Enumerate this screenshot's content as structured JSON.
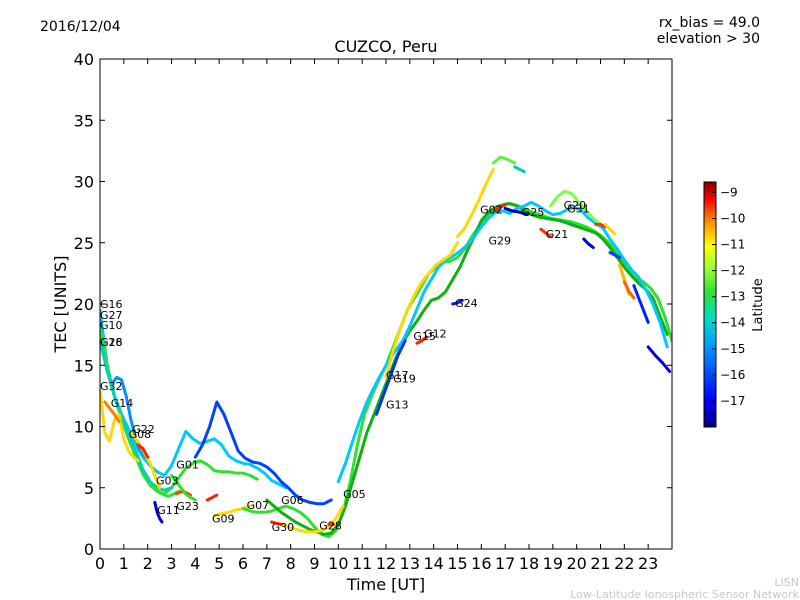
{
  "header": {
    "date": "2016/12/04",
    "rx_bias": "rx_bias = 49.0",
    "elevation": "elevation > 30"
  },
  "footer": {
    "line1": "LISN",
    "line2": "Low-Latitude Ionospheric Sensor Network"
  },
  "chart_data": {
    "type": "scatter",
    "title": "CUZCO, Peru",
    "xlabel": "Time [UT]",
    "ylabel": "TEC [UNITS]",
    "xlim": [
      0,
      24
    ],
    "ylim": [
      0,
      40
    ],
    "xticks": [
      "0",
      "1",
      "2",
      "3",
      "4",
      "5",
      "6",
      "7",
      "8",
      "9",
      "10",
      "11",
      "12",
      "13",
      "14",
      "15",
      "16",
      "17",
      "18",
      "19",
      "20",
      "21",
      "22",
      "23"
    ],
    "yticks": [
      "0",
      "5",
      "10",
      "15",
      "20",
      "25",
      "30",
      "35",
      "40"
    ],
    "grid": false,
    "colorbar": {
      "label": "Latitude",
      "range": [
        -18,
        -8.6
      ],
      "ticks": [
        "−9",
        "−10",
        "−11",
        "−12",
        "−13",
        "−14",
        "−15",
        "−16",
        "−17"
      ],
      "colormap": [
        "#00007f",
        "#0000ff",
        "#007fff",
        "#00ffff",
        "#7fff7f",
        "#ffff00",
        "#ff7f00",
        "#ff0000",
        "#7f0000"
      ]
    },
    "prn_labels": [
      {
        "text": "G16",
        "x": 0.0,
        "y": 20.0
      },
      {
        "text": "G27",
        "x": 0.0,
        "y": 19.1
      },
      {
        "text": "G10",
        "x": 0.0,
        "y": 18.3
      },
      {
        "text": "G18",
        "x": 0.0,
        "y": 16.9
      },
      {
        "text": "G26",
        "x": 0.0,
        "y": 16.9
      },
      {
        "text": "G32",
        "x": 0.0,
        "y": 13.3
      },
      {
        "text": "G14",
        "x": 0.45,
        "y": 11.9
      },
      {
        "text": "G22",
        "x": 1.35,
        "y": 9.8
      },
      {
        "text": "G08",
        "x": 1.2,
        "y": 9.4
      },
      {
        "text": "G01",
        "x": 3.2,
        "y": 6.9
      },
      {
        "text": "G03",
        "x": 2.35,
        "y": 5.6
      },
      {
        "text": "G23",
        "x": 3.2,
        "y": 3.5
      },
      {
        "text": "G11",
        "x": 2.4,
        "y": 3.2
      },
      {
        "text": "G09",
        "x": 4.7,
        "y": 2.5
      },
      {
        "text": "G07",
        "x": 6.15,
        "y": 3.6
      },
      {
        "text": "G06",
        "x": 7.6,
        "y": 4.0
      },
      {
        "text": "G30",
        "x": 7.2,
        "y": 1.8
      },
      {
        "text": "G28",
        "x": 9.2,
        "y": 1.9
      },
      {
        "text": "G05",
        "x": 10.2,
        "y": 4.5
      },
      {
        "text": "G17",
        "x": 12.0,
        "y": 14.2
      },
      {
        "text": "G19",
        "x": 12.3,
        "y": 13.9
      },
      {
        "text": "G13",
        "x": 12.0,
        "y": 11.8
      },
      {
        "text": "G15",
        "x": 13.15,
        "y": 17.4
      },
      {
        "text": "G12",
        "x": 13.6,
        "y": 17.6
      },
      {
        "text": "G24",
        "x": 14.9,
        "y": 20.1
      },
      {
        "text": "G02",
        "x": 15.95,
        "y": 27.7
      },
      {
        "text": "G29",
        "x": 16.3,
        "y": 25.2
      },
      {
        "text": "G25",
        "x": 17.7,
        "y": 27.5
      },
      {
        "text": "G21",
        "x": 18.7,
        "y": 25.7
      },
      {
        "text": "G20",
        "x": 19.45,
        "y": 28.1
      },
      {
        "text": "G31",
        "x": 19.6,
        "y": 27.8
      }
    ],
    "series": [
      {
        "color": "#00c8ff",
        "x": [
          0.0,
          0.3,
          0.6,
          0.9,
          1.2,
          1.5,
          1.8,
          2.1,
          2.4,
          2.7,
          3.0,
          3.3,
          3.6,
          3.9,
          4.2,
          4.5,
          4.8,
          5.1,
          5.4,
          5.7,
          6.0,
          6.3,
          6.6,
          6.9,
          7.2,
          7.5,
          7.8
        ],
        "y": [
          19.5,
          15.0,
          12.5,
          11.0,
          9.8,
          8.5,
          7.5,
          6.8,
          6.3,
          6.0,
          6.8,
          8.2,
          9.6,
          9.0,
          8.6,
          8.8,
          9.0,
          8.5,
          7.6,
          7.2,
          7.0,
          6.9,
          6.6,
          6.2,
          5.6,
          5.3,
          5.0
        ]
      },
      {
        "color": "#0040ff",
        "x": [
          4.0,
          4.3,
          4.6,
          4.9,
          5.2,
          5.5,
          5.8,
          6.1,
          6.4,
          6.7,
          7.0,
          7.3,
          7.6,
          7.9,
          8.2,
          8.5,
          8.8,
          9.1,
          9.4,
          9.7
        ],
        "y": [
          7.5,
          8.5,
          10.0,
          12.0,
          11.0,
          9.5,
          8.0,
          7.4,
          7.1,
          7.0,
          6.7,
          6.2,
          5.5,
          5.0,
          4.4,
          4.0,
          3.8,
          3.7,
          3.7,
          4.0
        ]
      },
      {
        "color": "#0090ff",
        "x": [
          0.5,
          0.7,
          0.9,
          1.1,
          1.3,
          1.5,
          1.7,
          1.9
        ],
        "y": [
          13.5,
          14.0,
          13.8,
          12.5,
          10.5,
          9.0,
          8.0,
          7.5
        ]
      },
      {
        "color": "#30e030",
        "x": [
          0.0,
          0.3,
          0.6,
          0.9,
          1.2,
          1.5,
          1.8,
          2.1,
          2.4,
          2.7,
          3.0,
          3.3,
          3.6,
          3.9,
          4.2,
          4.5,
          4.8,
          5.1,
          5.4,
          5.7,
          6.0,
          6.3,
          6.6
        ],
        "y": [
          18.0,
          15.0,
          12.5,
          10.6,
          9.0,
          7.5,
          6.1,
          5.2,
          4.7,
          4.5,
          5.0,
          5.8,
          6.6,
          7.0,
          7.2,
          6.9,
          6.4,
          6.3,
          6.3,
          6.2,
          6.2,
          6.0,
          5.7
        ]
      },
      {
        "color": "#00d0c0",
        "x": [
          0.0,
          0.3,
          0.6,
          0.9,
          1.2,
          1.5,
          1.8,
          2.1,
          2.4,
          2.7,
          3.0
        ],
        "y": [
          17.0,
          14.5,
          12.5,
          11.0,
          9.2,
          8.0,
          6.5,
          5.5,
          5.0,
          4.8,
          5.0
        ]
      },
      {
        "color": "#ffd800",
        "x": [
          0.0,
          0.2,
          0.4,
          0.6,
          0.8,
          1.0,
          1.2,
          1.4,
          1.6
        ],
        "y": [
          13.0,
          9.5,
          8.8,
          10.5,
          11.0,
          9.0,
          8.0,
          7.5,
          7.2
        ]
      },
      {
        "color": "#ff8000",
        "x": [
          0.2,
          0.4,
          0.6,
          0.8
        ],
        "y": [
          12.0,
          11.5,
          11.0,
          10.4
        ]
      },
      {
        "color": "#ffd800",
        "x": [
          1.3,
          1.5,
          1.7,
          1.9,
          2.1,
          2.3,
          2.5
        ],
        "y": [
          9.5,
          9.0,
          8.4,
          7.7,
          7.0,
          6.0,
          5.0
        ]
      },
      {
        "color": "#ff2000",
        "x": [
          1.6,
          1.8,
          2.0
        ],
        "y": [
          8.5,
          8.2,
          7.5
        ]
      },
      {
        "color": "#30e030",
        "x": [
          2.3,
          2.5,
          2.7,
          2.9,
          3.1,
          3.3
        ],
        "y": [
          5.0,
          4.6,
          4.4,
          4.3,
          4.5,
          4.7
        ]
      },
      {
        "color": "#0000d0",
        "x": [
          2.3,
          2.4,
          2.5,
          2.6
        ],
        "y": [
          3.8,
          3.0,
          2.5,
          2.2
        ]
      },
      {
        "color": "#ff4000",
        "x": [
          3.2,
          3.4,
          3.6,
          3.8
        ],
        "y": [
          4.5,
          4.7,
          4.6,
          4.4
        ]
      },
      {
        "color": "#30e030",
        "x": [
          3.0,
          3.2,
          3.4,
          3.6,
          3.8,
          4.0
        ],
        "y": [
          6.0,
          5.5,
          5.0,
          4.5,
          4.2,
          4.0
        ]
      },
      {
        "color": "#ff2000",
        "x": [
          4.5,
          4.7,
          4.9
        ],
        "y": [
          4.0,
          4.2,
          4.4
        ]
      },
      {
        "color": "#ffd800",
        "x": [
          4.8,
          5.1,
          5.4,
          5.7,
          6.0,
          6.3
        ],
        "y": [
          2.7,
          2.9,
          3.0,
          3.2,
          3.3,
          3.5
        ]
      },
      {
        "color": "#30e030",
        "x": [
          6.0,
          6.3,
          6.6,
          6.9,
          7.2,
          7.5,
          7.8,
          8.1,
          8.4,
          8.7,
          9.0,
          9.3,
          9.6,
          9.9,
          10.2,
          10.5,
          10.8,
          11.1,
          11.4,
          11.7,
          12.0,
          12.3,
          12.6,
          12.9,
          13.2,
          13.5,
          13.8,
          14.1,
          14.4,
          14.7,
          15.0,
          15.3,
          15.6,
          15.9,
          16.2,
          16.5,
          16.8,
          17.1,
          17.4,
          17.7,
          18.0,
          18.3,
          18.6,
          18.9,
          19.2,
          19.5,
          19.8,
          20.1,
          20.4,
          20.7,
          21.0,
          21.3,
          21.6,
          21.9,
          22.2,
          22.5,
          22.8,
          23.1,
          23.4,
          23.7,
          24.0
        ],
        "y": [
          3.3,
          3.1,
          3.0,
          3.0,
          3.1,
          3.3,
          3.5,
          3.3,
          3.0,
          2.5,
          1.8,
          1.2,
          1.0,
          1.5,
          3.0,
          5.5,
          8.5,
          11.0,
          12.5,
          13.8,
          15.0,
          16.5,
          18.0,
          19.5,
          20.5,
          21.5,
          22.5,
          23.0,
          23.4,
          23.5,
          23.8,
          24.5,
          25.5,
          26.3,
          27.0,
          27.6,
          28.0,
          28.2,
          28.1,
          27.9,
          27.6,
          27.4,
          27.2,
          27.0,
          26.9,
          26.8,
          26.7,
          26.5,
          26.3,
          26.0,
          25.6,
          25.1,
          24.4,
          23.6,
          22.8,
          22.1,
          21.8,
          21.3,
          20.5,
          19.0,
          17.0
        ]
      },
      {
        "color": "#10b010",
        "x": [
          7.0,
          7.3,
          7.6,
          7.9,
          8.2,
          8.5,
          8.8,
          9.1,
          9.4,
          9.7,
          10.0,
          10.3,
          10.6,
          10.9,
          11.2,
          11.5,
          11.8,
          12.1,
          12.4,
          12.7,
          13.0,
          13.3,
          13.6,
          13.9,
          14.2,
          14.5,
          14.8,
          15.1,
          15.4,
          15.7,
          16.0,
          16.3,
          16.6,
          16.9,
          17.2,
          17.5,
          17.8,
          18.1,
          18.4,
          18.7,
          19.0,
          19.3,
          19.6,
          19.9,
          20.2,
          20.5,
          20.8,
          21.1,
          21.4,
          21.7,
          22.0,
          22.3,
          22.6,
          22.9,
          23.2,
          23.5,
          23.8
        ],
        "y": [
          4.0,
          3.5,
          3.0,
          2.6,
          2.2,
          1.9,
          1.6,
          1.4,
          1.2,
          1.3,
          2.0,
          3.5,
          5.5,
          7.5,
          9.5,
          11.0,
          12.5,
          14.0,
          15.5,
          16.8,
          17.8,
          18.6,
          19.5,
          20.3,
          20.5,
          21.0,
          22.0,
          23.0,
          24.3,
          25.5,
          26.8,
          27.5,
          27.9,
          28.1,
          28.2,
          28.0,
          27.6,
          27.3,
          27.1,
          27.0,
          26.9,
          26.8,
          26.6,
          26.4,
          26.2,
          26.0,
          25.8,
          25.3,
          24.6,
          23.8,
          23.0,
          22.3,
          21.7,
          21.2,
          20.5,
          19.0,
          17.5
        ]
      },
      {
        "color": "#ffd800",
        "x": [
          7.5,
          7.8,
          8.1,
          8.4,
          8.7,
          9.0,
          9.3,
          9.6,
          9.9,
          10.2
        ],
        "y": [
          2.1,
          1.9,
          1.7,
          1.5,
          1.4,
          1.4,
          1.5,
          1.8,
          2.5,
          3.5
        ]
      },
      {
        "color": "#ff2000",
        "x": [
          7.2,
          7.4,
          7.6
        ],
        "y": [
          2.2,
          2.1,
          2.0
        ]
      },
      {
        "color": "#ff3000",
        "x": [
          9.6,
          9.8
        ],
        "y": [
          2.0,
          2.0
        ]
      },
      {
        "color": "#00c8ff",
        "x": [
          10.0,
          10.3,
          10.6,
          10.9,
          11.2,
          11.5,
          11.8,
          12.1,
          12.4,
          12.7,
          13.0,
          13.3,
          13.6,
          13.9,
          14.2,
          14.5,
          14.8,
          15.1,
          15.4,
          15.7,
          16.0,
          16.3,
          16.6,
          16.9,
          17.2,
          17.5,
          17.8,
          18.1,
          18.4,
          18.7,
          19.0,
          19.3,
          19.6,
          19.9,
          20.2,
          20.5,
          20.8,
          21.1,
          21.4,
          21.7,
          22.0,
          22.3,
          22.6,
          22.9,
          23.2,
          23.5,
          23.8
        ],
        "y": [
          5.5,
          7.0,
          8.8,
          10.5,
          12.0,
          13.2,
          14.3,
          15.3,
          16.2,
          17.0,
          18.2,
          19.6,
          21.0,
          22.0,
          23.0,
          23.6,
          23.9,
          24.3,
          24.8,
          25.5,
          26.3,
          27.0,
          27.5,
          27.6,
          27.4,
          27.8,
          28.0,
          28.3,
          28.0,
          27.6,
          27.3,
          27.4,
          27.7,
          27.9,
          27.6,
          27.0,
          26.6,
          26.2,
          25.3,
          24.5,
          23.6,
          22.8,
          22.2,
          21.2,
          20.0,
          18.5,
          16.5
        ]
      },
      {
        "color": "#0030ff",
        "x": [
          11.6,
          11.9,
          12.2,
          12.5,
          12.8
        ],
        "y": [
          11.0,
          12.6,
          14.2,
          15.8,
          17.0
        ]
      },
      {
        "color": "#ffd800",
        "x": [
          12.0,
          12.3,
          12.6,
          12.9,
          13.2,
          13.5,
          13.8,
          14.1,
          14.4,
          14.7,
          15.0
        ],
        "y": [
          14.0,
          16.2,
          18.0,
          19.5,
          20.8,
          21.8,
          22.5,
          23.2,
          23.6,
          24.0,
          25.0
        ]
      },
      {
        "color": "#ff2000",
        "x": [
          13.3,
          13.5,
          13.7
        ],
        "y": [
          16.8,
          17.0,
          17.3
        ]
      },
      {
        "color": "#0020e0",
        "x": [
          14.8,
          15.0,
          15.2
        ],
        "y": [
          20.0,
          20.1,
          20.3
        ]
      },
      {
        "color": "#ffd800",
        "x": [
          15.0,
          15.3,
          15.6,
          15.9,
          16.2,
          16.5
        ],
        "y": [
          25.5,
          26.2,
          27.3,
          28.5,
          29.8,
          31.0
        ]
      },
      {
        "color": "#60f040",
        "x": [
          16.5,
          16.8,
          17.1,
          17.4
        ],
        "y": [
          31.5,
          32.0,
          31.8,
          31.5
        ]
      },
      {
        "color": "#00c8c8",
        "x": [
          17.4,
          17.6,
          17.8
        ],
        "y": [
          31.2,
          31.0,
          30.8
        ]
      },
      {
        "color": "#ff2000",
        "x": [
          16.6,
          16.8,
          17.0
        ],
        "y": [
          27.6,
          27.9,
          28.1
        ]
      },
      {
        "color": "#0000c0",
        "x": [
          17.0,
          17.3,
          17.6,
          17.9
        ],
        "y": [
          27.8,
          27.6,
          27.5,
          27.3
        ]
      },
      {
        "color": "#ff3000",
        "x": [
          18.5,
          18.7,
          18.9
        ],
        "y": [
          26.1,
          25.8,
          25.5
        ]
      },
      {
        "color": "#80ff40",
        "x": [
          18.9,
          19.2,
          19.5,
          19.8,
          20.1,
          20.4,
          20.7,
          21.0
        ],
        "y": [
          28.0,
          28.8,
          29.2,
          29.0,
          28.3,
          27.6,
          27.0,
          26.5
        ]
      },
      {
        "color": "#0000d0",
        "x": [
          20.3,
          20.5,
          20.7
        ],
        "y": [
          25.3,
          24.9,
          24.6
        ]
      },
      {
        "color": "#ff3000",
        "x": [
          20.8,
          21.0,
          21.2
        ],
        "y": [
          26.5,
          26.5,
          26.3
        ]
      },
      {
        "color": "#ffd800",
        "x": [
          21.2,
          21.4,
          21.6
        ],
        "y": [
          26.5,
          26.1,
          25.7
        ]
      },
      {
        "color": "#0040ff",
        "x": [
          21.4,
          21.6,
          21.8
        ],
        "y": [
          24.2,
          24.0,
          23.8
        ]
      },
      {
        "color": "#ffb000",
        "x": [
          21.8,
          22.0,
          22.2
        ],
        "y": [
          23.2,
          22.0,
          20.8
        ]
      },
      {
        "color": "#ff6000",
        "x": [
          22.0,
          22.2,
          22.4
        ],
        "y": [
          21.8,
          21.0,
          20.5
        ]
      },
      {
        "color": "#0000e0",
        "x": [
          23.0,
          23.3,
          23.6,
          23.9
        ],
        "y": [
          16.5,
          15.8,
          15.2,
          14.5
        ]
      },
      {
        "color": "#0020ff",
        "x": [
          22.4,
          22.6,
          22.8,
          23.0
        ],
        "y": [
          21.5,
          20.5,
          19.5,
          18.5
        ]
      }
    ]
  }
}
